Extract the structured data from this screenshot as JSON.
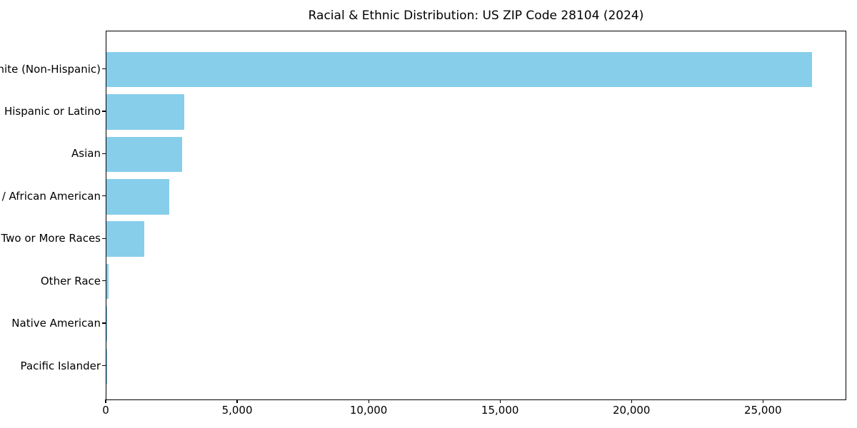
{
  "figure": {
    "title": "Racial & Ethnic Distribution: US ZIP Code 28104 (2024)"
  },
  "chart_data": {
    "type": "bar",
    "orientation": "horizontal",
    "title": "Racial & Ethnic Distribution: US ZIP Code 28104 (2024)",
    "categories": [
      "White (Non-Hispanic)",
      "Hispanic or Latino",
      "Asian",
      "Black / African American",
      "Two or More Races",
      "Other Race",
      "Native American",
      "Pacific Islander"
    ],
    "values": [
      26840,
      2950,
      2870,
      2390,
      1440,
      95,
      28,
      8
    ],
    "xlabel": "",
    "ylabel": "",
    "xlim": [
      0,
      28170
    ],
    "xticks": [
      0,
      5000,
      10000,
      15000,
      20000,
      25000
    ],
    "xtick_labels": [
      "0",
      "5,000",
      "10,000",
      "15,000",
      "20,000",
      "25,000"
    ],
    "bar_color": "#87CEEB",
    "axis_color": "#000000",
    "text_color": "#000000",
    "background_color": "#FFFFFF",
    "grid": false,
    "legend": null
  }
}
